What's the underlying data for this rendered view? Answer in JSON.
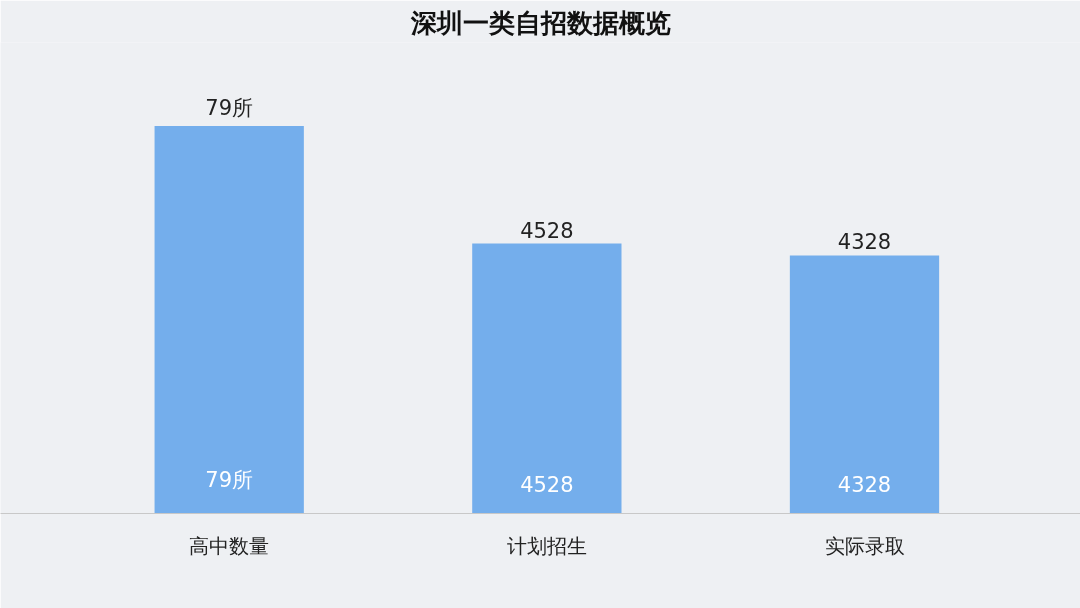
{
  "chart_data": {
    "type": "bar",
    "title": "深圳一类自招数据概览",
    "categories": [
      "高中数量",
      "计划招生",
      "实际录取"
    ],
    "series": [
      {
        "values": [
          79,
          null,
          null
        ],
        "value_labels": [
          "79所",
          null,
          null
        ],
        "color": "#74aeec",
        "axis": "y2"
      },
      {
        "values": [
          null,
          4528,
          4328
        ],
        "value_labels": [
          null,
          "4528",
          "4328"
        ],
        "color": "#74aeec"
      }
    ],
    "ylim": [
      0,
      7900
    ],
    "y2lim": [
      0,
      96
    ],
    "tick_labels": "x"
  }
}
